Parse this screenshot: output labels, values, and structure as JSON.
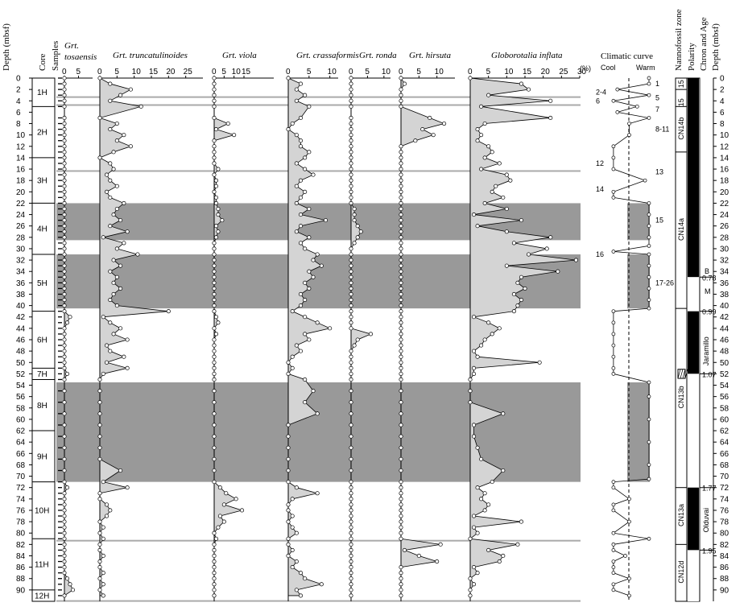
{
  "header": {
    "depth_label": "Depth (mbsf)",
    "core_label": "Core",
    "samples_label": "Samples",
    "climatic_curve_label": "Climatic curve",
    "cool_label": "Cool",
    "warm_label": "Warm",
    "nanno_label": "Nannofossil zone",
    "polarity_label": "Polarity",
    "chron_label": "Chron and Age",
    "depth_right_label": "Depth (mbsf)",
    "percent_label": "(%)"
  },
  "cores": [
    {
      "label": "1H",
      "top": 0,
      "bottom": 5
    },
    {
      "label": "2H",
      "top": 5,
      "bottom": 14
    },
    {
      "label": "3H",
      "top": 14,
      "bottom": 22
    },
    {
      "label": "4H",
      "top": 22,
      "bottom": 31
    },
    {
      "label": "5H",
      "top": 31,
      "bottom": 41
    },
    {
      "label": "6H",
      "top": 41,
      "bottom": 51
    },
    {
      "label": "7H",
      "top": 51,
      "bottom": 53
    },
    {
      "label": "8H",
      "top": 53,
      "bottom": 62
    },
    {
      "label": "9H",
      "top": 62,
      "bottom": 71
    },
    {
      "label": "10H",
      "top": 71,
      "bottom": 81
    },
    {
      "label": "11H",
      "top": 81,
      "bottom": 90
    },
    {
      "label": "12H",
      "top": 90,
      "bottom": 92
    }
  ],
  "chart_data": {
    "type": "area",
    "y_axis": {
      "label": "Depth (mbsf)",
      "ylim": [
        0,
        92
      ],
      "ticks": [
        0,
        2,
        4,
        6,
        8,
        10,
        12,
        14,
        16,
        18,
        20,
        22,
        24,
        26,
        28,
        30,
        32,
        34,
        36,
        38,
        40,
        42,
        44,
        46,
        48,
        50,
        52,
        54,
        56,
        58,
        60,
        62,
        64,
        66,
        68,
        70,
        72,
        74,
        76,
        78,
        80,
        82,
        84,
        86,
        88,
        90
      ],
      "inverted": true
    },
    "depth": [
      0,
      1,
      2,
      3,
      4,
      5,
      7,
      8,
      9,
      10,
      11,
      12,
      13,
      14,
      15,
      16,
      17,
      18,
      19,
      20,
      21,
      22,
      23,
      24,
      25,
      26,
      27,
      28,
      29,
      30,
      31,
      32,
      33,
      34,
      35,
      36,
      37,
      38,
      39,
      40,
      41,
      42,
      43,
      44,
      45,
      46,
      47,
      48,
      49,
      50,
      51,
      52,
      53,
      55,
      57,
      59,
      61,
      63,
      65,
      67,
      69,
      71,
      72,
      73,
      74,
      75,
      76,
      77,
      78,
      79,
      80,
      81,
      82,
      83,
      84,
      85,
      86,
      87,
      88,
      89,
      90,
      91
    ],
    "series": [
      {
        "name": "Grt. tosaensis",
        "xmax": 10,
        "tick_labels": [
          "0",
          "5"
        ],
        "values": [
          0,
          0,
          0,
          0,
          0,
          0,
          0,
          0,
          0,
          0,
          0,
          0,
          0,
          0,
          0,
          0,
          0,
          0,
          0,
          0,
          0,
          0,
          0,
          0,
          0,
          0,
          0,
          0,
          0,
          0,
          0,
          0,
          0,
          0,
          0,
          0,
          0,
          0,
          0,
          0,
          0,
          2,
          1,
          0,
          0,
          0,
          0,
          0,
          0,
          0,
          0,
          1,
          0,
          0,
          0,
          0,
          0,
          0,
          0,
          0,
          0,
          0,
          1,
          0,
          0,
          0,
          0,
          0,
          0,
          0,
          0,
          0,
          0,
          0,
          0,
          0,
          0,
          0,
          1,
          2,
          3,
          0
        ]
      },
      {
        "name": "Grt. truncatulinoides",
        "xmax": 30,
        "tick_labels": [
          "0",
          "5",
          "10",
          "15",
          "20",
          "25"
        ],
        "values": [
          0,
          3,
          9,
          6,
          3,
          12,
          0,
          5,
          3,
          7,
          5,
          9,
          4,
          0,
          3,
          4,
          2,
          3,
          5,
          2,
          3,
          7,
          5,
          4,
          6,
          3,
          8,
          1,
          7,
          5,
          11,
          4,
          6,
          3,
          5,
          4,
          6,
          4,
          3,
          5,
          20,
          1,
          3,
          6,
          4,
          8,
          2,
          3,
          7,
          2,
          8,
          1,
          0,
          0,
          0,
          0,
          0,
          0,
          0,
          0,
          6,
          1,
          8,
          0,
          0,
          2,
          3,
          2,
          0,
          1,
          0,
          1,
          0,
          0,
          1,
          0,
          0,
          1,
          0,
          1,
          0,
          1
        ]
      },
      {
        "name": "Grt. viola",
        "xmax": 30,
        "tick_labels": [
          "0",
          "5",
          "10",
          "15"
        ],
        "values": [
          0,
          0,
          0,
          0,
          0,
          0,
          0,
          7,
          1,
          10,
          0,
          0,
          0,
          0,
          0,
          2,
          0,
          1,
          1,
          0,
          1,
          1,
          2,
          2,
          4,
          1,
          2,
          1,
          0,
          0,
          0,
          0,
          0,
          0,
          0,
          0,
          0,
          0,
          0,
          0,
          0,
          1,
          2,
          0,
          1,
          0,
          0,
          0,
          0,
          0,
          0,
          0,
          0,
          0,
          0,
          0,
          0,
          0,
          0,
          0,
          0,
          0,
          3,
          6,
          11,
          5,
          14,
          3,
          5,
          2,
          0,
          1,
          0,
          0,
          0,
          0,
          0,
          0,
          0,
          0,
          0,
          0
        ]
      },
      {
        "name": "Grt. crassaformis",
        "xmax": 12,
        "tick_labels": [
          "0",
          "5",
          "10"
        ],
        "values": [
          0,
          3,
          2,
          4,
          2,
          5,
          3,
          1,
          0,
          2,
          3,
          3,
          5,
          4,
          2,
          4,
          6,
          3,
          2,
          4,
          3,
          2,
          5,
          3,
          9,
          3,
          2,
          5,
          3,
          4,
          7,
          6,
          8,
          5,
          6,
          4,
          5,
          3,
          4,
          3,
          1,
          4,
          7,
          10,
          4,
          5,
          2,
          3,
          1,
          0,
          1,
          0,
          4,
          6,
          4,
          7,
          0,
          0,
          0,
          0,
          0,
          0,
          2,
          7,
          1,
          0,
          0,
          1,
          0,
          1,
          2,
          0,
          0,
          1,
          0,
          2,
          1,
          3,
          4,
          8,
          2,
          3
        ]
      },
      {
        "name": "Grt. ronda",
        "xmax": 12,
        "tick_labels": [
          "0",
          "5",
          "10"
        ],
        "values": [
          0,
          0,
          0,
          0,
          0,
          0,
          0,
          0,
          0,
          0,
          0,
          0,
          0,
          0,
          0,
          0,
          0,
          0,
          0,
          0,
          0,
          0,
          1,
          1,
          1,
          2,
          3,
          2,
          1,
          0,
          0,
          0,
          0,
          0,
          0,
          0,
          0,
          0,
          0,
          0,
          0,
          0,
          0,
          0,
          6,
          2,
          1,
          0,
          0,
          0,
          0,
          0,
          0,
          0,
          0,
          0,
          0,
          0,
          0,
          0,
          0,
          0,
          0,
          0,
          0,
          0,
          0,
          0,
          0,
          0,
          0,
          0,
          0,
          0,
          0,
          0,
          0,
          0,
          0,
          0,
          0,
          0
        ]
      },
      {
        "name": "Grt. hirsuta",
        "xmax": 15,
        "tick_labels": [
          "0",
          "5",
          "10"
        ],
        "values": [
          0,
          1,
          0,
          0,
          0,
          0,
          8,
          12,
          6,
          9,
          4,
          0,
          0,
          0,
          0,
          0,
          0,
          0,
          0,
          0,
          0,
          0,
          0,
          0,
          0,
          0,
          0,
          0,
          0,
          0,
          0,
          0,
          0,
          0,
          0,
          0,
          0,
          0,
          0,
          0,
          0,
          0,
          0,
          0,
          0,
          0,
          0,
          0,
          0,
          0,
          0,
          0,
          0,
          0,
          0,
          0,
          0,
          0,
          0,
          0,
          0,
          0,
          0,
          0,
          0,
          0,
          0,
          0,
          0,
          0,
          0,
          0,
          11,
          1,
          5,
          10,
          0,
          0,
          0,
          0,
          0,
          0
        ]
      },
      {
        "name": "Globorotalia inflata",
        "xmax": 30,
        "tick_labels": [
          "0",
          "5",
          "10",
          "15",
          "20",
          "25",
          "30"
        ],
        "values": [
          0,
          14,
          16,
          5,
          22,
          3,
          22,
          4,
          2,
          3,
          2,
          5,
          6,
          4,
          8,
          3,
          10,
          11,
          7,
          6,
          9,
          4,
          10,
          1,
          14,
          2,
          10,
          22,
          12,
          21,
          16,
          29,
          10,
          24,
          14,
          13,
          15,
          12,
          14,
          13,
          12,
          1,
          5,
          8,
          6,
          4,
          3,
          1,
          2,
          19,
          1,
          1,
          0,
          0,
          0,
          9,
          1,
          1,
          2,
          3,
          9,
          6,
          2,
          4,
          3,
          5,
          4,
          1,
          14,
          1,
          2,
          0,
          13,
          5,
          9,
          8,
          1,
          2,
          0,
          1,
          0,
          0
        ]
      }
    ],
    "gray_bands": [
      [
        22,
        28.5
      ],
      [
        31,
        40.5
      ],
      [
        53.5,
        71
      ]
    ],
    "climate_curve": {
      "xlabels": [
        "Cool",
        "Warm"
      ],
      "depth": [
        0,
        1,
        2,
        3,
        4,
        5,
        6,
        7,
        8,
        10,
        12,
        14,
        16,
        18,
        20,
        21,
        22,
        24,
        26,
        28,
        29.5,
        30.5,
        31,
        33,
        35,
        37,
        39,
        40.5,
        41,
        43,
        45,
        47,
        49,
        51,
        52,
        53.5,
        56,
        60,
        64,
        68,
        70.5,
        71,
        72,
        74,
        75,
        76,
        78,
        80,
        81,
        82,
        83,
        84,
        85,
        86,
        87,
        88,
        89,
        90,
        91
      ],
      "values": [
        1,
        1,
        0.2,
        1,
        0.1,
        0.7,
        0.2,
        1,
        0.5,
        0.5,
        0.1,
        0.1,
        0.1,
        0.9,
        0.1,
        0.1,
        1,
        1,
        1,
        1,
        1,
        0.1,
        1,
        1,
        1,
        1,
        1,
        1,
        0.1,
        0.1,
        0.1,
        0.1,
        0.1,
        0.1,
        0.1,
        1,
        1,
        1,
        1,
        1,
        1,
        0.1,
        0.1,
        0.5,
        0.1,
        0.1,
        0.5,
        0.1,
        1,
        0.1,
        0.1,
        0.4,
        0.1,
        0.1,
        0.1,
        0.5,
        0.1,
        0.1,
        0.5,
        1
      ],
      "labels": [
        {
          "text": "1",
          "depth": 1,
          "side": "right"
        },
        {
          "text": "2-4",
          "depth": 2.5,
          "side": "left"
        },
        {
          "text": "5",
          "depth": 3.5,
          "side": "right"
        },
        {
          "text": "6",
          "depth": 4,
          "side": "left"
        },
        {
          "text": "7",
          "depth": 5.5,
          "side": "right"
        },
        {
          "text": "8-11",
          "depth": 9,
          "side": "right"
        },
        {
          "text": "12",
          "depth": 15,
          "side": "left"
        },
        {
          "text": "13",
          "depth": 16.5,
          "side": "right"
        },
        {
          "text": "14",
          "depth": 19.5,
          "side": "left"
        },
        {
          "text": "15",
          "depth": 25,
          "side": "right"
        },
        {
          "text": "16",
          "depth": 31,
          "side": "left"
        },
        {
          "text": "17-26",
          "depth": 36,
          "side": "right"
        }
      ]
    },
    "nannofossil_zones": [
      {
        "label": "15",
        "top": 0,
        "bottom": 2
      },
      {
        "label": "15",
        "top": 3.5,
        "bottom": 5
      },
      {
        "label": "CN14b",
        "top": 5,
        "bottom": 13
      },
      {
        "label": "CN14a",
        "top": 13,
        "bottom": 40.5
      },
      {
        "label": "CN13b",
        "top": 40.5,
        "bottom": 72
      },
      {
        "label": "CN13a",
        "top": 72,
        "bottom": 82
      },
      {
        "label": "CN12d",
        "top": 82,
        "bottom": 92
      }
    ],
    "polarity": [
      {
        "top": 0,
        "bottom": 35,
        "fill": "black"
      },
      {
        "top": 35,
        "bottom": 41,
        "fill": "white"
      },
      {
        "top": 41,
        "bottom": 52,
        "fill": "black"
      },
      {
        "top": 52,
        "bottom": 72,
        "fill": "white"
      },
      {
        "top": 72,
        "bottom": 83,
        "fill": "black"
      },
      {
        "top": 83,
        "bottom": 92,
        "fill": "white"
      }
    ],
    "chrons": [
      {
        "label": "B",
        "depth": 34,
        "kind": "text"
      },
      {
        "label": "0.78",
        "depth": 35,
        "kind": "age"
      },
      {
        "label": "M",
        "depth": 37.5,
        "kind": "text"
      },
      {
        "label": "0.99",
        "depth": 41,
        "kind": "age"
      },
      {
        "label": "Jaramillo",
        "depth": 47.5,
        "kind": "vertical"
      },
      {
        "label": "1.07",
        "depth": 52,
        "kind": "age"
      },
      {
        "label": "1.77",
        "depth": 72,
        "kind": "age"
      },
      {
        "label": "Olduvai",
        "depth": 77.5,
        "kind": "vertical"
      },
      {
        "label": "1.95",
        "depth": 83,
        "kind": "age"
      }
    ]
  },
  "colors": {
    "fill": "#d4d4d4",
    "band": "#999999",
    "line": "#000000",
    "marker": "#ffffff"
  }
}
